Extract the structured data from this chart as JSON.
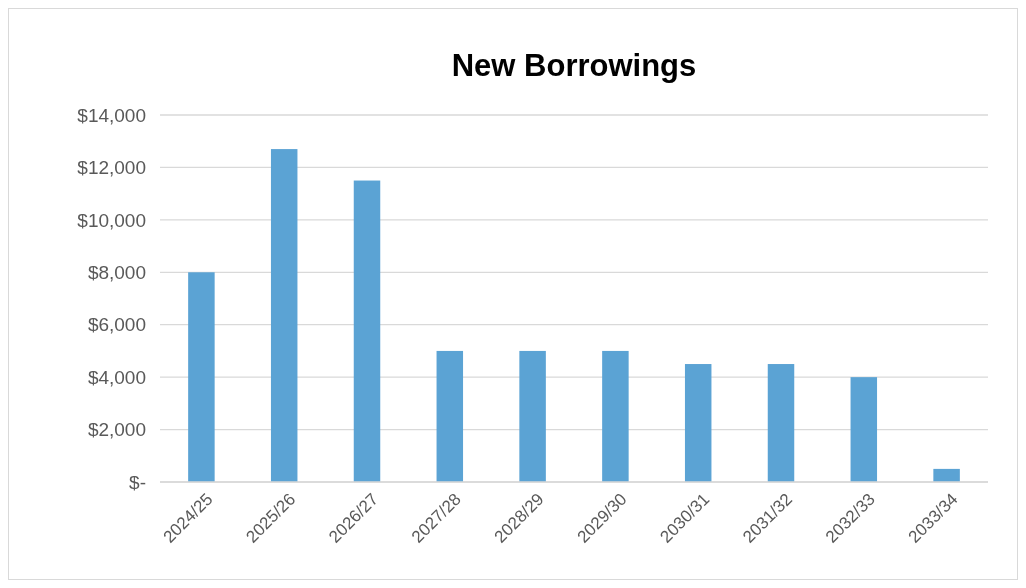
{
  "chart_data": {
    "type": "bar",
    "title": "New Borrowings",
    "categories": [
      "2024/25",
      "2025/26",
      "2026/27",
      "2027/28",
      "2028/29",
      "2029/30",
      "2030/31",
      "2031/32",
      "2032/33",
      "2033/34"
    ],
    "values": [
      8000,
      12700,
      11500,
      5000,
      5000,
      5000,
      4500,
      4500,
      4000,
      500
    ],
    "color": "#5ba3d4",
    "ylim": [
      0,
      14000
    ],
    "yticks": [
      {
        "value": 0,
        "label": "$-"
      },
      {
        "value": 2000,
        "label": "$2,000"
      },
      {
        "value": 4000,
        "label": "$4,000"
      },
      {
        "value": 6000,
        "label": "$6,000"
      },
      {
        "value": 8000,
        "label": "$8,000"
      },
      {
        "value": 10000,
        "label": "$10,000"
      },
      {
        "value": 12000,
        "label": "$12,000"
      },
      {
        "value": 14000,
        "label": "$14,000"
      }
    ],
    "grid": true
  }
}
